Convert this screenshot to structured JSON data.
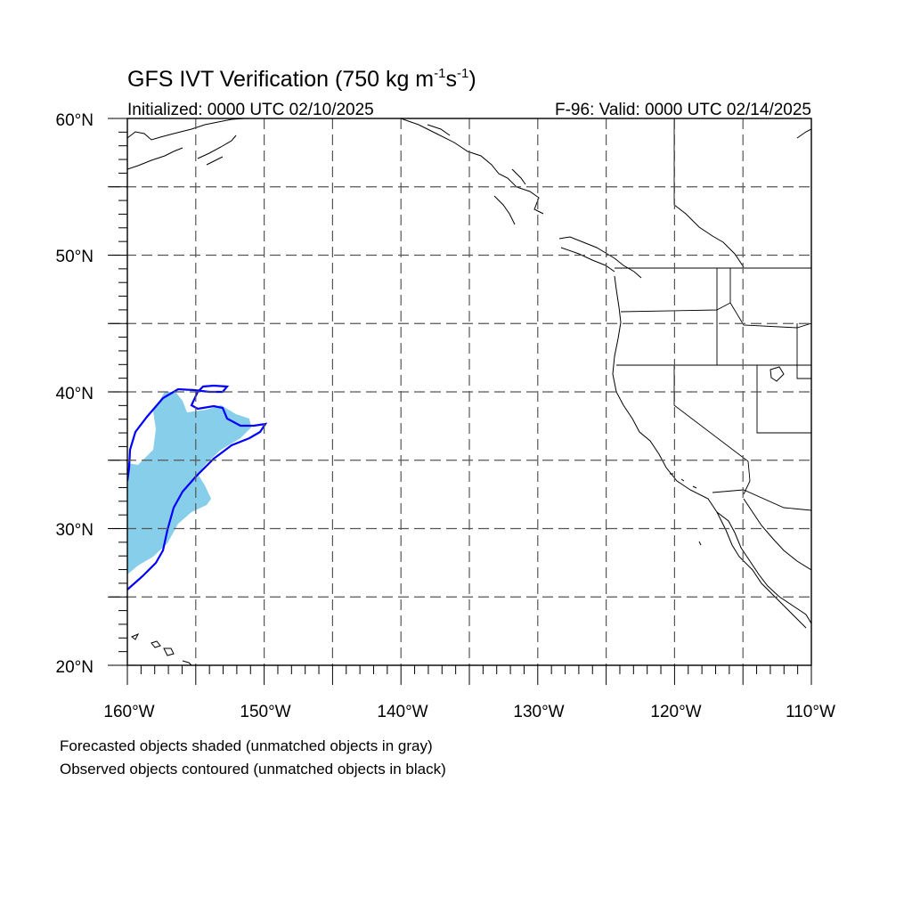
{
  "title": {
    "main": "GFS IVT Verification (750 kg m",
    "exp1": "-1",
    "mid": "s",
    "exp2": "-1",
    "close": ")"
  },
  "subtitle_left": "Initialized: 0000 UTC 02/10/2025",
  "subtitle_right": "F-96: Valid: 0000 UTC 02/14/2025",
  "map": {
    "lon_range": [
      -160,
      -110
    ],
    "lat_range": [
      20,
      60
    ],
    "grid": "dashed every 5 degrees"
  },
  "lat_labels": [
    "60°N",
    "50°N",
    "40°N",
    "30°N",
    "20°N"
  ],
  "lon_labels": [
    "160°W",
    "150°W",
    "140°W",
    "130°W",
    "120°W",
    "110°W"
  ],
  "colors": {
    "forecast_fill": "#87ceeb",
    "observed_contour": "#0000ff",
    "coastline": "#000000",
    "grid": "#555555"
  },
  "footnotes": [
    "Forecasted objects shaded (unmatched objects in gray)",
    "Observed objects contoured (unmatched objects in black)"
  ]
}
